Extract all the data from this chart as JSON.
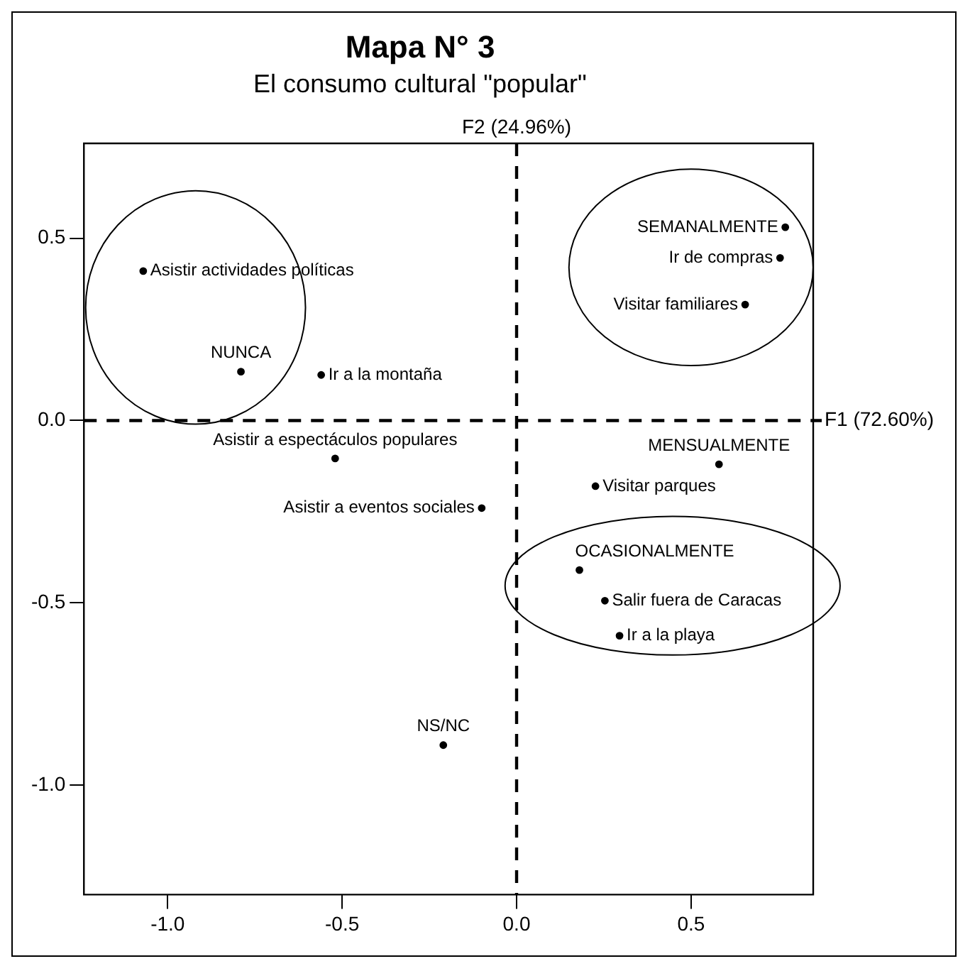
{
  "chart_data": {
    "type": "scatter",
    "title": "Mapa N° 3",
    "subtitle": "El consumo cultural \"popular\"",
    "series": [
      {
        "color": "#000000",
        "x": [
          -1.07,
          -0.79,
          -0.56,
          -0.52,
          -0.1,
          0.77,
          0.755,
          0.655,
          0.58,
          0.226,
          0.18,
          0.253,
          0.295,
          -0.21
        ],
        "values": [
          0.41,
          0.134,
          0.125,
          -0.104,
          -0.24,
          0.53,
          0.446,
          0.318,
          -0.12,
          -0.18,
          -0.41,
          -0.494,
          -0.59,
          -0.89
        ]
      }
    ],
    "annotations": [
      {
        "text": "Asistir actividades políticas",
        "x": -1.07,
        "y": 0.41
      },
      {
        "text": "NUNCA",
        "x": -0.79,
        "y": 0.134
      },
      {
        "text": "Ir a la montaña",
        "x": -0.56,
        "y": 0.125
      },
      {
        "text": "Asistir a espectáculos populares",
        "x": -0.52,
        "y": -0.104
      },
      {
        "text": "Asistir a eventos sociales",
        "x": -0.1,
        "y": -0.24
      },
      {
        "text": "SEMANALMENTE",
        "x": 0.77,
        "y": 0.53
      },
      {
        "text": "Ir de compras",
        "x": 0.755,
        "y": 0.446
      },
      {
        "text": "Visitar familiares",
        "x": 0.655,
        "y": 0.318
      },
      {
        "text": "MENSUALMENTE",
        "x": 0.58,
        "y": -0.12
      },
      {
        "text": "Visitar parques",
        "x": 0.226,
        "y": -0.18
      },
      {
        "text": "OCASIONALMENTE",
        "x": 0.18,
        "y": -0.41
      },
      {
        "text": "Salir fuera de Caracas",
        "x": 0.253,
        "y": -0.494
      },
      {
        "text": "Ir a la playa",
        "x": 0.295,
        "y": -0.59
      },
      {
        "text": "NS/NC",
        "x": -0.21,
        "y": -0.89
      }
    ],
    "ref_lines": [
      {
        "axis": "x",
        "value": 0,
        "label": "F2 (24.96%)",
        "color": "#000000",
        "line_style": "dashed"
      },
      {
        "axis": "y",
        "value": 0,
        "label": "F1 (72.60%)",
        "color": "#000000",
        "line_style": "dashed"
      }
    ],
    "xlim": [
      -1.24,
      0.85
    ],
    "ylim": [
      -1.3,
      0.76
    ],
    "xticks": [
      {
        "value": -1,
        "label": "-1.0"
      },
      {
        "value": -0.5,
        "label": "-0.5"
      },
      {
        "value": 0,
        "label": "0.0"
      },
      {
        "value": 0.5,
        "label": "0.5"
      }
    ],
    "yticks": [
      {
        "value": -1,
        "label": "-1.0"
      },
      {
        "value": -0.5,
        "label": "-0.5"
      },
      {
        "value": 0,
        "label": "0.0"
      },
      {
        "value": 0.5,
        "label": "0.5"
      }
    ],
    "grid": false,
    "legend": false,
    "marker": "circle"
  }
}
